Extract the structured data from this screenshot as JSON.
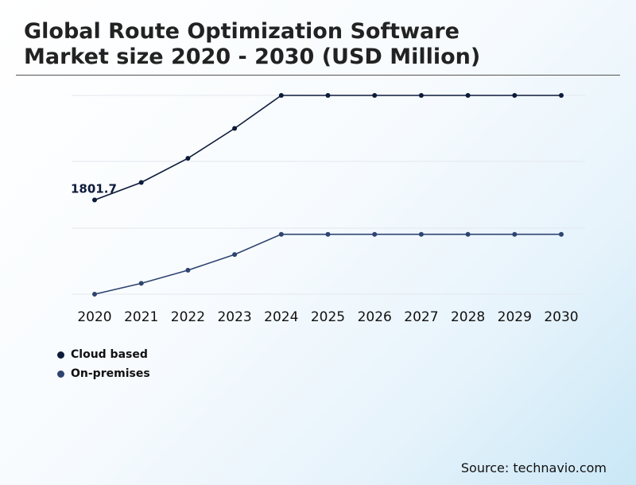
{
  "title": {
    "line1": "Global Route Optimization Software",
    "line2": "Market size 2020 - 2030 (USD Million)"
  },
  "source": "Source: technavio.com",
  "colors": {
    "cloud": "#0d1b3a",
    "onprem": "#2e4470",
    "grid": "#e3e8ee"
  },
  "chart_data": {
    "type": "line",
    "title": "Global Route Optimization Software Market size 2020 - 2030 (USD Million)",
    "xlabel": "",
    "ylabel": "",
    "x": [
      "2020",
      "2021",
      "2022",
      "2023",
      "2024",
      "2025",
      "2026",
      "2027",
      "2028",
      "2029",
      "2030"
    ],
    "ylim": [
      0,
      3800
    ],
    "grid": true,
    "legend_position": "bottom-left",
    "series": [
      {
        "name": "Cloud based",
        "color": "#0d1b3a",
        "values": [
          1801.7,
          2136,
          2597,
          3169,
          3863,
          3863,
          3863,
          3863,
          3863,
          3863,
          3863
        ]
      },
      {
        "name": "On-premises",
        "color": "#2e4470",
        "values": [
          0,
          207,
          458,
          758,
          1144,
          1144,
          1144,
          1144,
          1144,
          1144,
          1144
        ]
      }
    ],
    "annotations": [
      {
        "series": 0,
        "index": 0,
        "text": "1801.7"
      }
    ]
  }
}
